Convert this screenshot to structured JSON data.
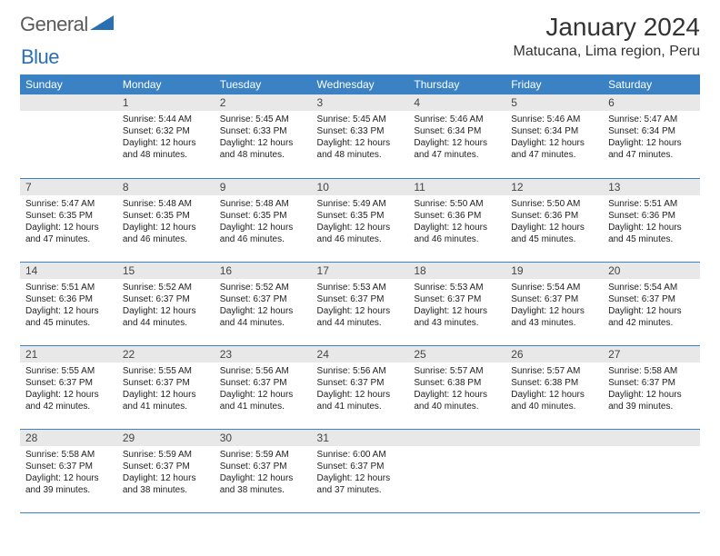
{
  "logo": {
    "word1": "General",
    "word2": "Blue",
    "accent_color": "#2b6fb3",
    "text_color": "#5a5a5a"
  },
  "title": "January 2024",
  "location": "Matucana, Lima region, Peru",
  "header_bg": "#3b82c4",
  "daynum_bg": "#e8e8e8",
  "row_border": "#3b82c4",
  "weekdays": [
    "Sunday",
    "Monday",
    "Tuesday",
    "Wednesday",
    "Thursday",
    "Friday",
    "Saturday"
  ],
  "weeks": [
    [
      null,
      {
        "n": "1",
        "sunrise": "5:44 AM",
        "sunset": "6:32 PM",
        "daylight": "12 hours and 48 minutes."
      },
      {
        "n": "2",
        "sunrise": "5:45 AM",
        "sunset": "6:33 PM",
        "daylight": "12 hours and 48 minutes."
      },
      {
        "n": "3",
        "sunrise": "5:45 AM",
        "sunset": "6:33 PM",
        "daylight": "12 hours and 48 minutes."
      },
      {
        "n": "4",
        "sunrise": "5:46 AM",
        "sunset": "6:34 PM",
        "daylight": "12 hours and 47 minutes."
      },
      {
        "n": "5",
        "sunrise": "5:46 AM",
        "sunset": "6:34 PM",
        "daylight": "12 hours and 47 minutes."
      },
      {
        "n": "6",
        "sunrise": "5:47 AM",
        "sunset": "6:34 PM",
        "daylight": "12 hours and 47 minutes."
      }
    ],
    [
      {
        "n": "7",
        "sunrise": "5:47 AM",
        "sunset": "6:35 PM",
        "daylight": "12 hours and 47 minutes."
      },
      {
        "n": "8",
        "sunrise": "5:48 AM",
        "sunset": "6:35 PM",
        "daylight": "12 hours and 46 minutes."
      },
      {
        "n": "9",
        "sunrise": "5:48 AM",
        "sunset": "6:35 PM",
        "daylight": "12 hours and 46 minutes."
      },
      {
        "n": "10",
        "sunrise": "5:49 AM",
        "sunset": "6:35 PM",
        "daylight": "12 hours and 46 minutes."
      },
      {
        "n": "11",
        "sunrise": "5:50 AM",
        "sunset": "6:36 PM",
        "daylight": "12 hours and 46 minutes."
      },
      {
        "n": "12",
        "sunrise": "5:50 AM",
        "sunset": "6:36 PM",
        "daylight": "12 hours and 45 minutes."
      },
      {
        "n": "13",
        "sunrise": "5:51 AM",
        "sunset": "6:36 PM",
        "daylight": "12 hours and 45 minutes."
      }
    ],
    [
      {
        "n": "14",
        "sunrise": "5:51 AM",
        "sunset": "6:36 PM",
        "daylight": "12 hours and 45 minutes."
      },
      {
        "n": "15",
        "sunrise": "5:52 AM",
        "sunset": "6:37 PM",
        "daylight": "12 hours and 44 minutes."
      },
      {
        "n": "16",
        "sunrise": "5:52 AM",
        "sunset": "6:37 PM",
        "daylight": "12 hours and 44 minutes."
      },
      {
        "n": "17",
        "sunrise": "5:53 AM",
        "sunset": "6:37 PM",
        "daylight": "12 hours and 44 minutes."
      },
      {
        "n": "18",
        "sunrise": "5:53 AM",
        "sunset": "6:37 PM",
        "daylight": "12 hours and 43 minutes."
      },
      {
        "n": "19",
        "sunrise": "5:54 AM",
        "sunset": "6:37 PM",
        "daylight": "12 hours and 43 minutes."
      },
      {
        "n": "20",
        "sunrise": "5:54 AM",
        "sunset": "6:37 PM",
        "daylight": "12 hours and 42 minutes."
      }
    ],
    [
      {
        "n": "21",
        "sunrise": "5:55 AM",
        "sunset": "6:37 PM",
        "daylight": "12 hours and 42 minutes."
      },
      {
        "n": "22",
        "sunrise": "5:55 AM",
        "sunset": "6:37 PM",
        "daylight": "12 hours and 41 minutes."
      },
      {
        "n": "23",
        "sunrise": "5:56 AM",
        "sunset": "6:37 PM",
        "daylight": "12 hours and 41 minutes."
      },
      {
        "n": "24",
        "sunrise": "5:56 AM",
        "sunset": "6:37 PM",
        "daylight": "12 hours and 41 minutes."
      },
      {
        "n": "25",
        "sunrise": "5:57 AM",
        "sunset": "6:38 PM",
        "daylight": "12 hours and 40 minutes."
      },
      {
        "n": "26",
        "sunrise": "5:57 AM",
        "sunset": "6:38 PM",
        "daylight": "12 hours and 40 minutes."
      },
      {
        "n": "27",
        "sunrise": "5:58 AM",
        "sunset": "6:37 PM",
        "daylight": "12 hours and 39 minutes."
      }
    ],
    [
      {
        "n": "28",
        "sunrise": "5:58 AM",
        "sunset": "6:37 PM",
        "daylight": "12 hours and 39 minutes."
      },
      {
        "n": "29",
        "sunrise": "5:59 AM",
        "sunset": "6:37 PM",
        "daylight": "12 hours and 38 minutes."
      },
      {
        "n": "30",
        "sunrise": "5:59 AM",
        "sunset": "6:37 PM",
        "daylight": "12 hours and 38 minutes."
      },
      {
        "n": "31",
        "sunrise": "6:00 AM",
        "sunset": "6:37 PM",
        "daylight": "12 hours and 37 minutes."
      },
      null,
      null,
      null
    ]
  ],
  "labels": {
    "sunrise": "Sunrise:",
    "sunset": "Sunset:",
    "daylight": "Daylight:"
  }
}
